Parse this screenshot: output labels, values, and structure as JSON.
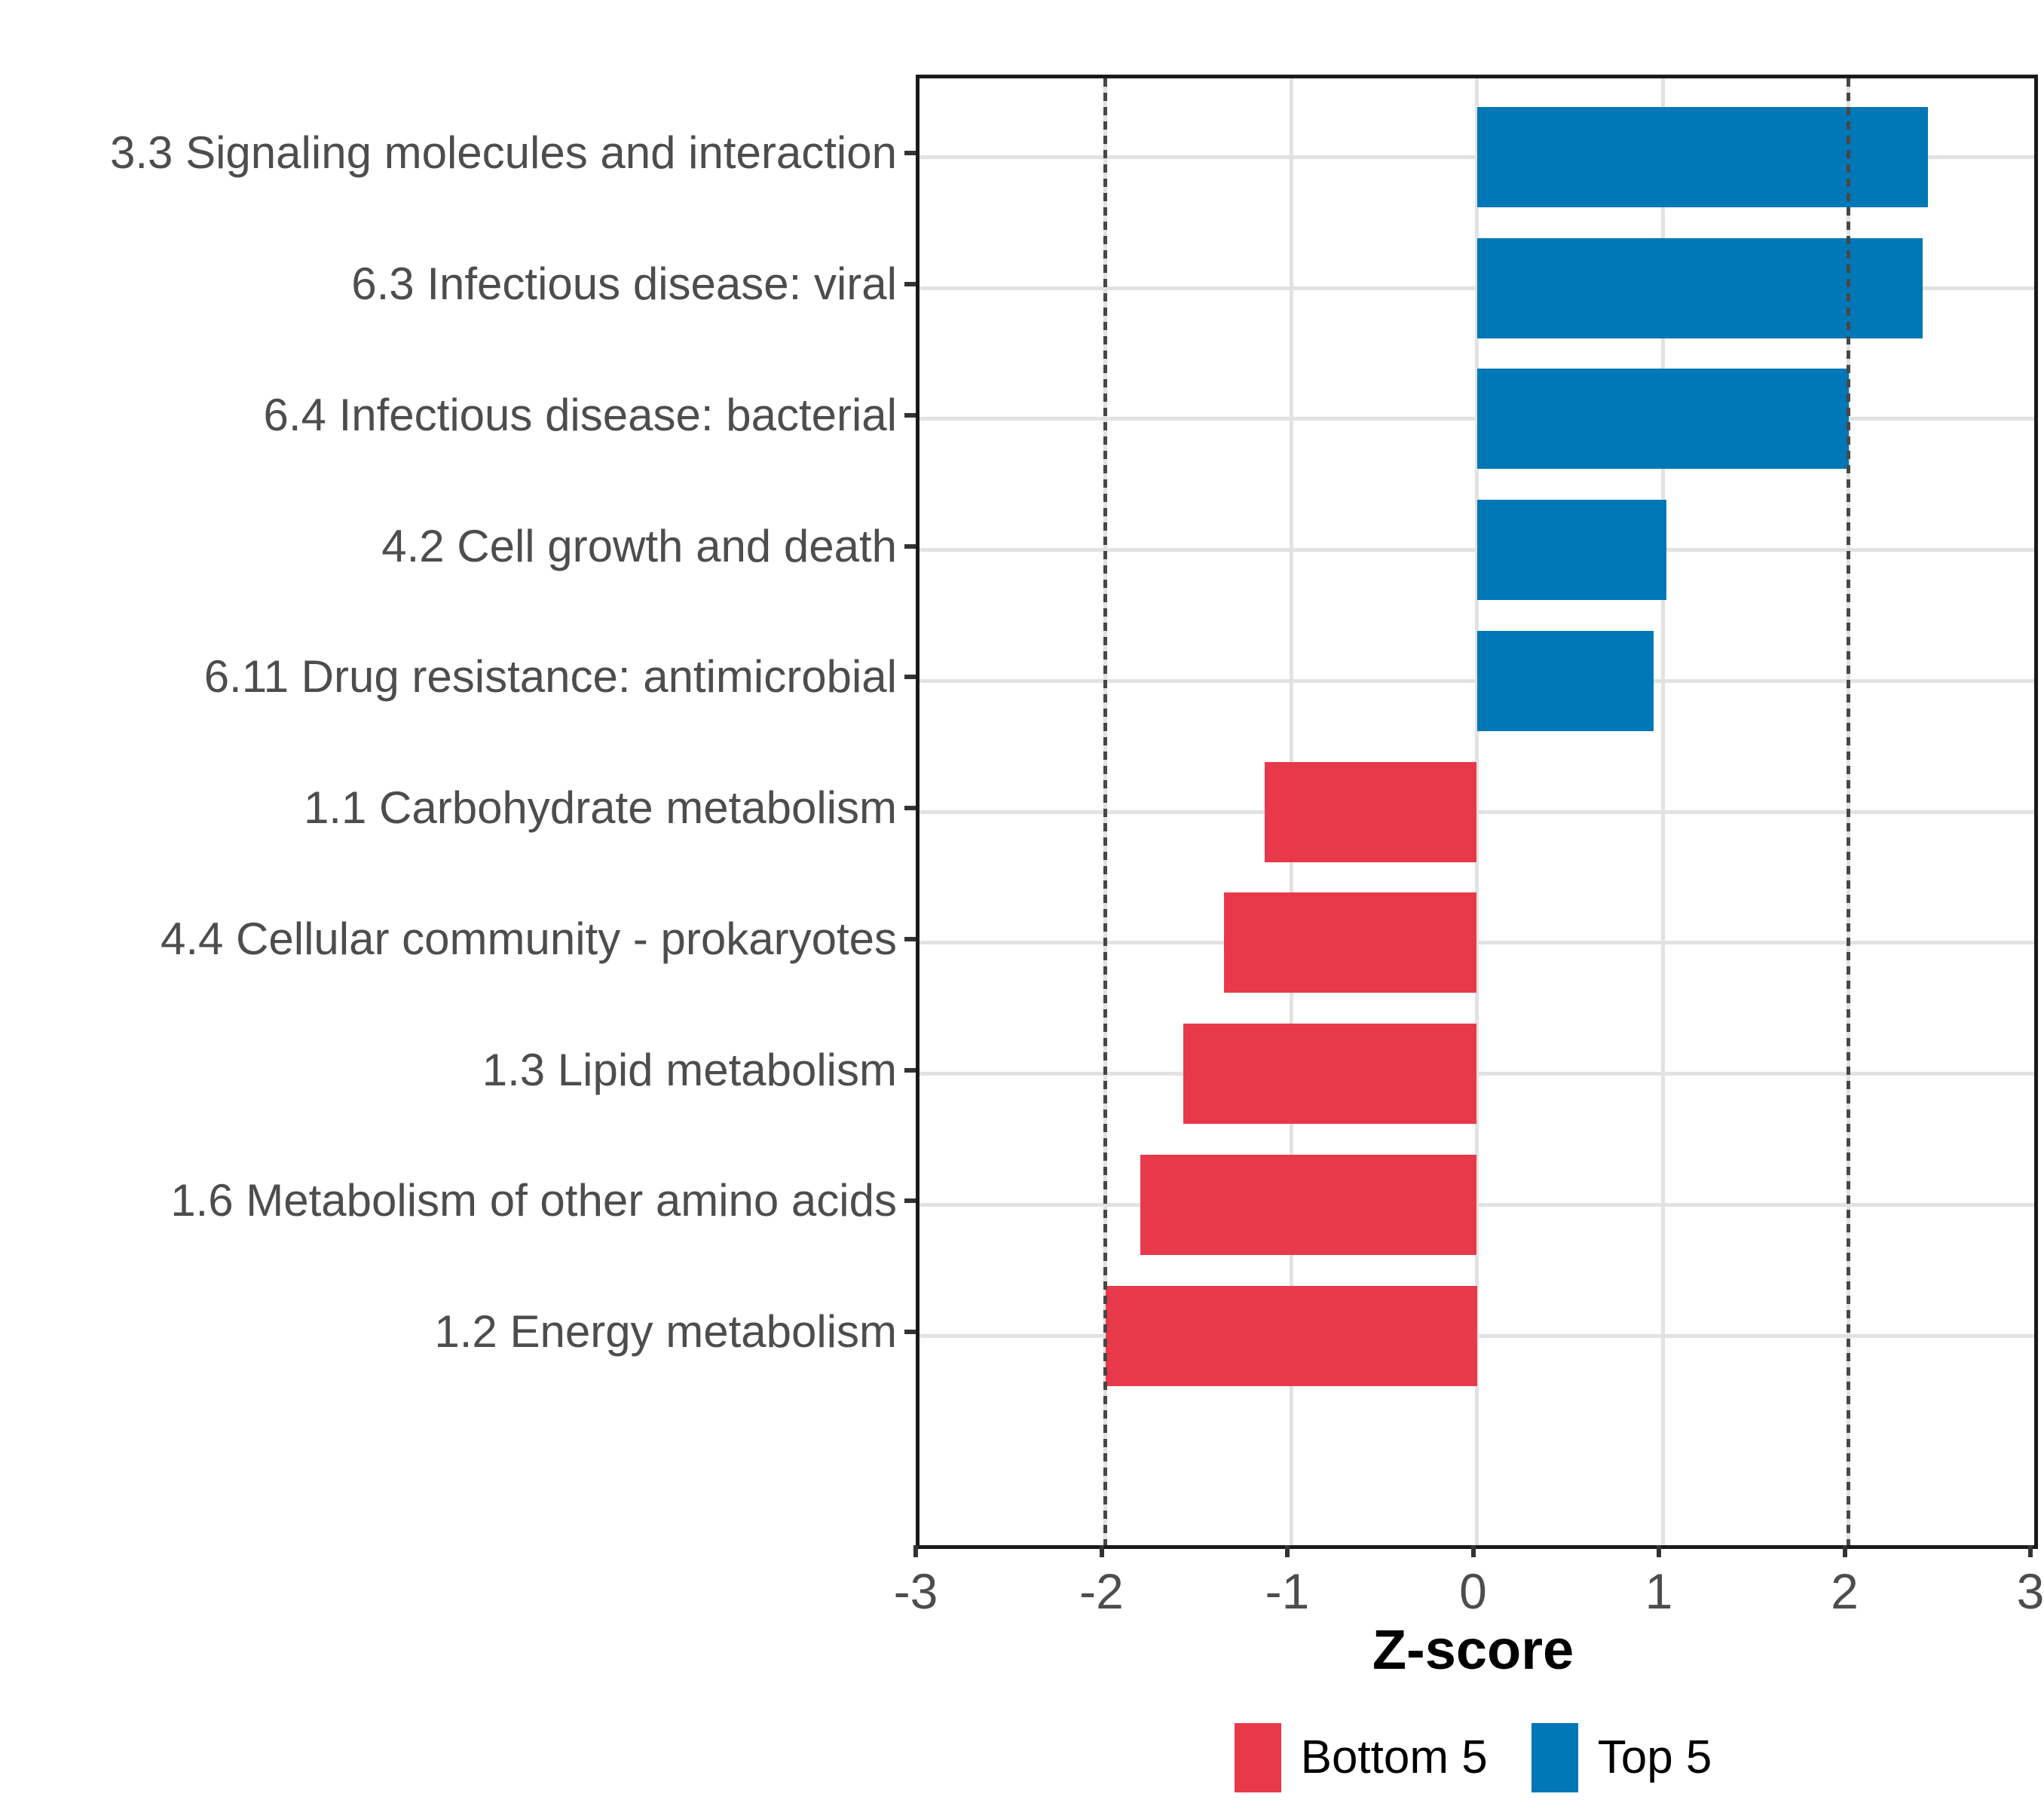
{
  "chart_data": {
    "type": "bar",
    "orientation": "horizontal",
    "title": "",
    "xlabel": "Z-score",
    "ylabel": "",
    "xlim": [
      -3,
      3
    ],
    "x_ticks": [
      -3,
      -2,
      -1,
      0,
      1,
      2,
      3
    ],
    "grid": true,
    "reference_lines": [
      -2,
      2
    ],
    "legend_position": "bottom",
    "categories": [
      "3.3 Signaling molecules and interaction",
      "6.3 Infectious disease: viral",
      "6.4 Infectious disease: bacterial",
      "4.2 Cell growth and death",
      "6.11 Drug resistance: antimicrobial",
      "1.1 Carbohydrate metabolism",
      "4.4 Cellular community - prokaryotes",
      "1.3 Lipid metabolism",
      "1.6 Metabolism of other amino acids",
      "1.2 Energy metabolism"
    ],
    "values": [
      2.43,
      2.4,
      2.0,
      1.02,
      0.95,
      -1.14,
      -1.36,
      -1.58,
      -1.81,
      -2.0
    ],
    "groups": [
      "Top 5",
      "Top 5",
      "Top 5",
      "Top 5",
      "Top 5",
      "Bottom 5",
      "Bottom 5",
      "Bottom 5",
      "Bottom 5",
      "Bottom 5"
    ],
    "colors": {
      "Bottom 5": "#e8394a",
      "Top 5": "#0077b6"
    },
    "legend": [
      {
        "label": "Bottom 5",
        "color": "#e8394a"
      },
      {
        "label": "Top 5",
        "color": "#0077b6"
      }
    ]
  }
}
